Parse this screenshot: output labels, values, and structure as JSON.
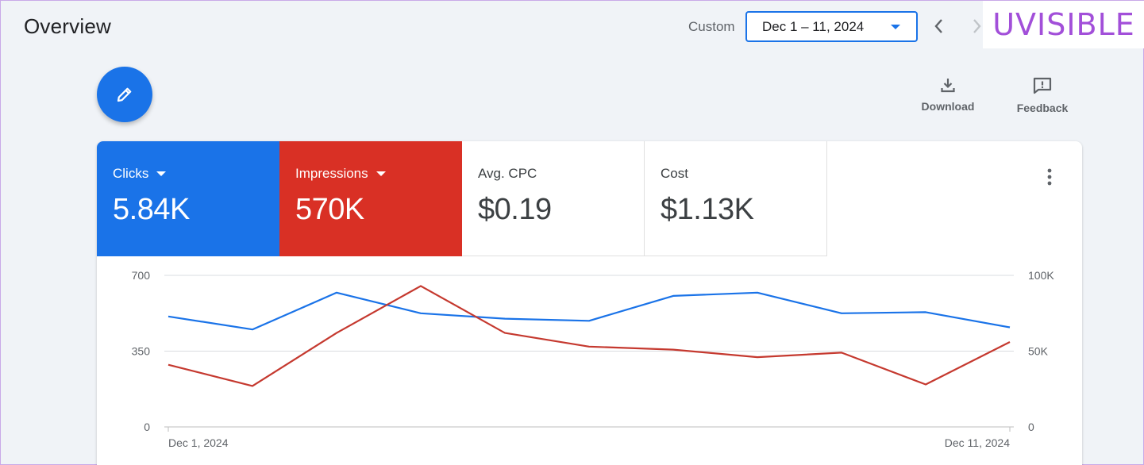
{
  "header": {
    "title": "Overview",
    "range_label": "Custom",
    "date_range": "Dec 1 – 11, 2024"
  },
  "logo": {
    "text": "UVISIBLE"
  },
  "toolbar": {
    "download_label": "Download",
    "feedback_label": "Feedback"
  },
  "metrics": [
    {
      "label": "Clicks",
      "value": "5.84K",
      "color": "#1a73e8"
    },
    {
      "label": "Impressions",
      "value": "570K",
      "color": "#d93025"
    },
    {
      "label": "Avg. CPC",
      "value": "$0.19"
    },
    {
      "label": "Cost",
      "value": "$1.13K"
    }
  ],
  "chart_data": {
    "type": "line",
    "x_start_label": "Dec 1, 2024",
    "x_end_label": "Dec 11, 2024",
    "x": [
      "Dec 1",
      "Dec 2",
      "Dec 3",
      "Dec 4",
      "Dec 5",
      "Dec 6",
      "Dec 7",
      "Dec 8",
      "Dec 9",
      "Dec 10",
      "Dec 11"
    ],
    "left_axis": {
      "ticks": [
        "700",
        "350",
        "0"
      ],
      "ylim": [
        0,
        700
      ]
    },
    "right_axis": {
      "ticks": [
        "100K",
        "50K",
        "0"
      ],
      "ylim": [
        0,
        100000
      ]
    },
    "series": [
      {
        "name": "Clicks",
        "axis": "left",
        "color": "#1a73e8",
        "values": [
          510,
          450,
          620,
          525,
          500,
          490,
          605,
          620,
          525,
          530,
          460
        ]
      },
      {
        "name": "Impressions",
        "axis": "right",
        "color": "#c5392f",
        "values": [
          41000,
          27000,
          62000,
          93000,
          62000,
          53000,
          51000,
          46000,
          49000,
          28000,
          56000
        ]
      }
    ],
    "grid": true
  }
}
